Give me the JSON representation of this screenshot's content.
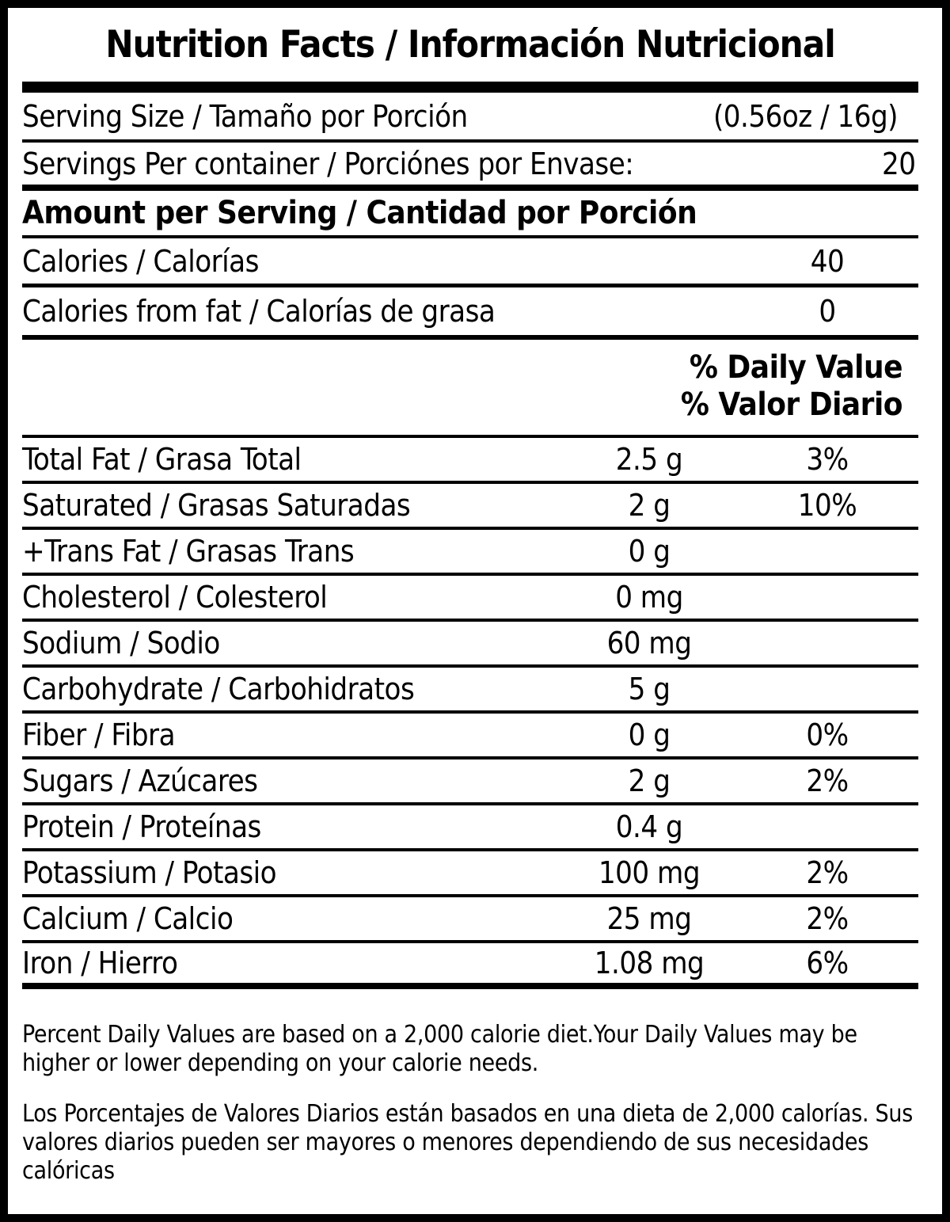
{
  "title": "Nutrition Facts / Información Nutricional",
  "serving_info": {
    "serving_size": {
      "label": "Serving Size / Tamaño por Porción",
      "value": "(0.56oz / 16g)"
    },
    "servings_per_container": {
      "label": "Servings Per container / Porciónes por Envase:",
      "value": "20"
    }
  },
  "amount_per_serving_header": "Amount per Serving / Cantidad por Porción",
  "calories": {
    "label": "Calories / Calorías",
    "value": "40"
  },
  "calories_from_fat": {
    "label": "Calories from fat / Calorías de grasa",
    "value": "0"
  },
  "daily_value_header": {
    "en": "% Daily Value",
    "es": "% Valor Diario"
  },
  "nutrients": [
    {
      "label": "Total Fat / Grasa Total",
      "amount": "2.5 g",
      "daily_value": "3%"
    },
    {
      "label": "Saturated / Grasas Saturadas",
      "amount": "2 g",
      "daily_value": "10%"
    },
    {
      "label": "+Trans Fat / Grasas Trans",
      "amount": "0 g",
      "daily_value": ""
    },
    {
      "label": "Cholesterol / Colesterol",
      "amount": "0 mg",
      "daily_value": ""
    },
    {
      "label": "Sodium / Sodio",
      "amount": "60 mg",
      "daily_value": ""
    },
    {
      "label": "Carbohydrate / Carbohidratos",
      "amount": "5 g",
      "daily_value": ""
    },
    {
      "label": "Fiber / Fibra",
      "amount": "0 g",
      "daily_value": "0%"
    },
    {
      "label": "Sugars / Azúcares",
      "amount": "2 g",
      "daily_value": "2%"
    },
    {
      "label": "Protein / Proteínas",
      "amount": "0.4 g",
      "daily_value": ""
    },
    {
      "label": "Potassium / Potasio",
      "amount": "100 mg",
      "daily_value": "2%"
    },
    {
      "label": "Calcium / Calcio",
      "amount": "25 mg",
      "daily_value": "2%"
    },
    {
      "label": "Iron / Hierro",
      "amount": "1.08 mg",
      "daily_value": "6%"
    }
  ],
  "footnotes": {
    "en": "Percent Daily Values are based on a 2,000 calorie diet.Your Daily Values may be higher or lower depending on your calorie needs.",
    "es": "Los Porcentajes de Valores Diarios están basados en una dieta de 2,000 calorías. Sus valores diarios pueden ser mayores o menores dependiendo de sus necesidades calóricas"
  },
  "colors": {
    "text": "#000000",
    "background": "#ffffff",
    "border": "#000000"
  }
}
